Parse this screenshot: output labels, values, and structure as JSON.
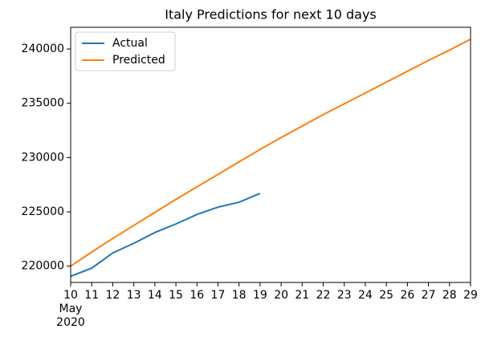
{
  "chart_data": {
    "type": "line",
    "title": "Italy Predictions for next 10 days",
    "x": [
      "2020-05-10",
      "2020-05-11",
      "2020-05-12",
      "2020-05-13",
      "2020-05-14",
      "2020-05-15",
      "2020-05-16",
      "2020-05-17",
      "2020-05-18",
      "2020-05-19",
      "2020-05-20",
      "2020-05-21",
      "2020-05-22",
      "2020-05-23",
      "2020-05-24",
      "2020-05-25",
      "2020-05-26",
      "2020-05-27",
      "2020-05-28",
      "2020-05-29"
    ],
    "series": [
      {
        "name": "Actual",
        "color": "#1f77b4",
        "values": [
          219070,
          219814,
          221216,
          222104,
          223096,
          223885,
          224760,
          225435,
          225886,
          226699,
          null,
          null,
          null,
          null,
          null,
          null,
          null,
          null,
          null,
          null
        ]
      },
      {
        "name": "Predicted",
        "color": "#ff7f0e",
        "values": [
          220000,
          221300,
          222550,
          223750,
          224950,
          226150,
          227300,
          228450,
          229600,
          230750,
          231850,
          232900,
          233950,
          234950,
          235950,
          236950,
          237950,
          238950,
          239900,
          240900
        ]
      }
    ],
    "xlim": [
      "2020-05-10",
      "2020-05-29"
    ],
    "xticks": [
      {
        "value": "2020-05-10",
        "label": "10"
      },
      {
        "value": "2020-05-11",
        "label": "11"
      },
      {
        "value": "2020-05-12",
        "label": "12"
      },
      {
        "value": "2020-05-13",
        "label": "13"
      },
      {
        "value": "2020-05-14",
        "label": "14"
      },
      {
        "value": "2020-05-15",
        "label": "15"
      },
      {
        "value": "2020-05-16",
        "label": "16"
      },
      {
        "value": "2020-05-17",
        "label": "17"
      },
      {
        "value": "2020-05-18",
        "label": "18"
      },
      {
        "value": "2020-05-19",
        "label": "19"
      },
      {
        "value": "2020-05-20",
        "label": "20"
      },
      {
        "value": "2020-05-21",
        "label": "21"
      },
      {
        "value": "2020-05-22",
        "label": "22"
      },
      {
        "value": "2020-05-23",
        "label": "23"
      },
      {
        "value": "2020-05-24",
        "label": "24"
      },
      {
        "value": "2020-05-25",
        "label": "25"
      },
      {
        "value": "2020-05-26",
        "label": "26"
      },
      {
        "value": "2020-05-27",
        "label": "27"
      },
      {
        "value": "2020-05-28",
        "label": "28"
      },
      {
        "value": "2020-05-29",
        "label": "29"
      }
    ],
    "xtick_sublabel": {
      "month": "May",
      "year": "2020"
    },
    "ylim": [
      218500,
      242000
    ],
    "yticks": [
      220000,
      225000,
      230000,
      235000,
      240000
    ],
    "grid": false,
    "legend": "upper left"
  }
}
